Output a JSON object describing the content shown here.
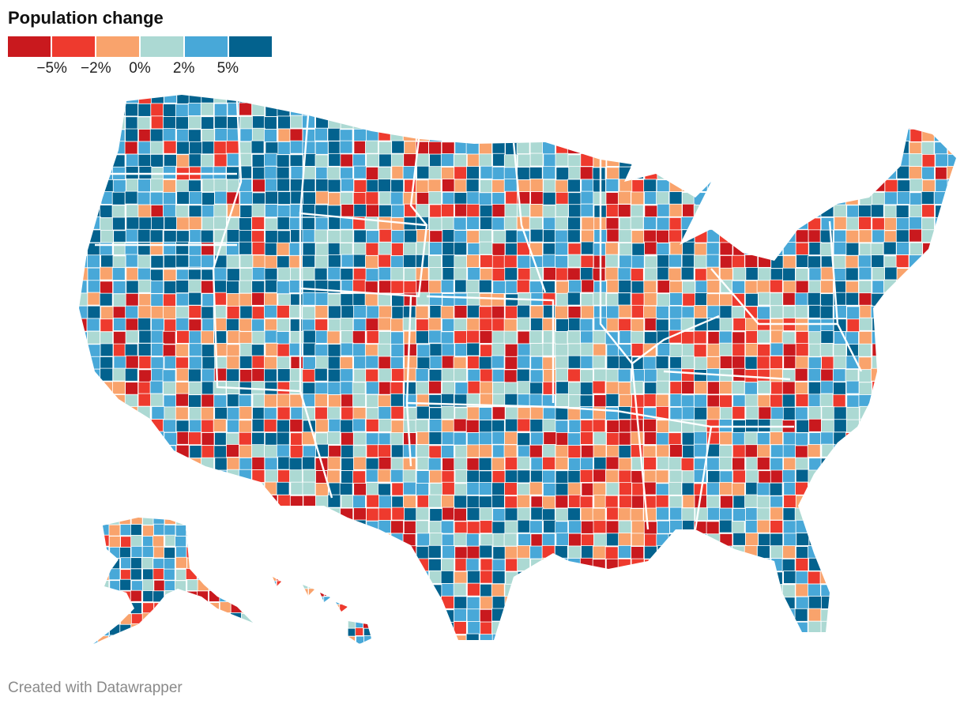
{
  "title": "Population change",
  "footer": "Created with Datawrapper",
  "legend": {
    "colors": [
      "#c9191e",
      "#ee3a2e",
      "#f9a36c",
      "#acd9d3",
      "#48a8d8",
      "#03628e"
    ],
    "ticks": [
      "−5%",
      "−2%",
      "0%",
      "2%",
      "5%"
    ]
  },
  "map": {
    "region": "United States counties",
    "insets": [
      "Alaska",
      "Hawaii"
    ],
    "boundary_color": "#ffffff"
  }
}
